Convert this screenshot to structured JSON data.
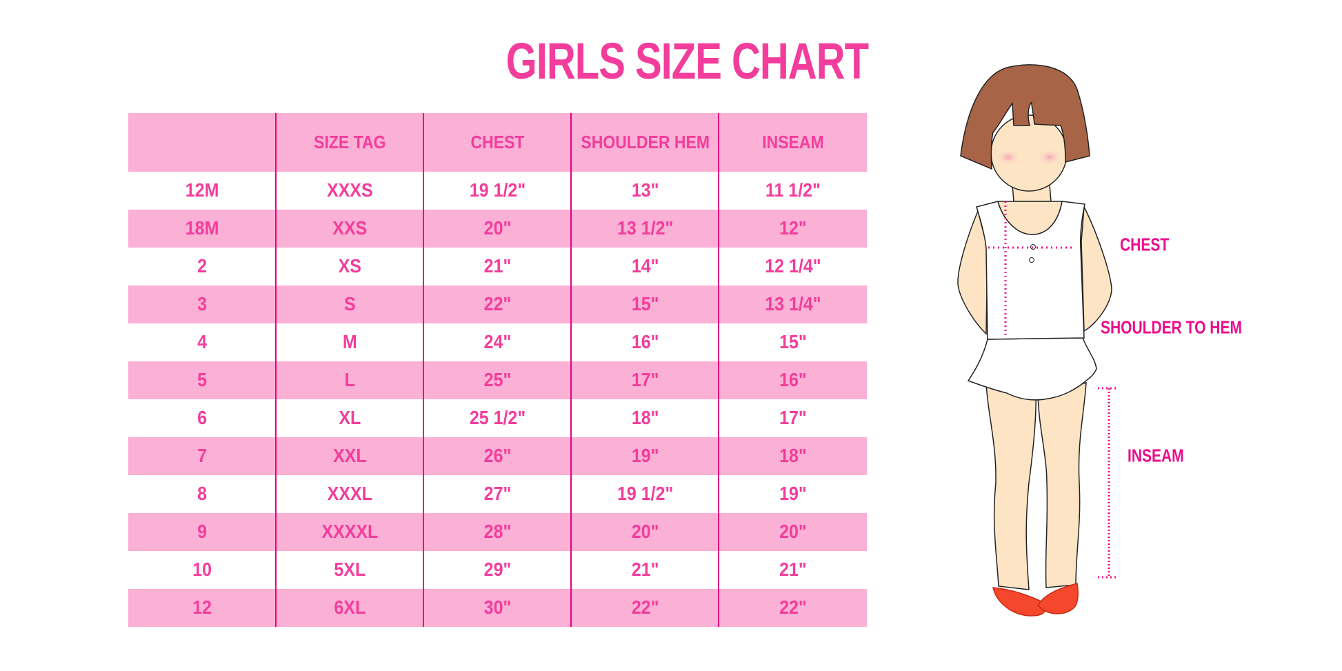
{
  "title": "GIRLS SIZE CHART",
  "colors": {
    "accent": "#f23d9c",
    "row_pink": "#fbb0d6",
    "divider": "#e6007e"
  },
  "table": {
    "headers": [
      "",
      "SIZE TAG",
      "CHEST",
      "SHOULDER HEM",
      "INSEAM"
    ],
    "rows": [
      [
        "12M",
        "XXXS",
        "19 1/2\"",
        "13\"",
        "11 1/2\""
      ],
      [
        "18M",
        "XXS",
        "20\"",
        "13 1/2\"",
        "12\""
      ],
      [
        "2",
        "XS",
        "21\"",
        "14\"",
        "12 1/4\""
      ],
      [
        "3",
        "S",
        "22\"",
        "15\"",
        "13 1/4\""
      ],
      [
        "4",
        "M",
        "24\"",
        "16\"",
        "15\""
      ],
      [
        "5",
        "L",
        "25\"",
        "17\"",
        "16\""
      ],
      [
        "6",
        "XL",
        "25 1/2\"",
        "18\"",
        "17\""
      ],
      [
        "7",
        "XXL",
        "26\"",
        "19\"",
        "18\""
      ],
      [
        "8",
        "XXXL",
        "27\"",
        "19 1/2\"",
        "19\""
      ],
      [
        "9",
        "XXXXL",
        "28\"",
        "20\"",
        "20\""
      ],
      [
        "10",
        "5XL",
        "29\"",
        "21\"",
        "21\""
      ],
      [
        "12",
        "6XL",
        "30\"",
        "22\"",
        "22\""
      ]
    ]
  },
  "figure": {
    "labels": {
      "chest": "CHEST",
      "shoulder_to_hem": "SHOULDER TO HEM",
      "inseam": "INSEAM"
    }
  }
}
